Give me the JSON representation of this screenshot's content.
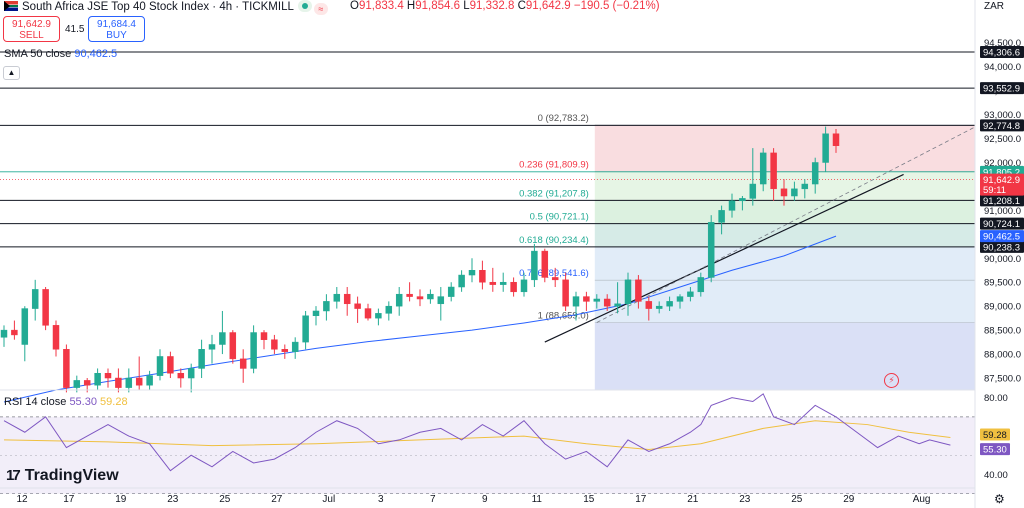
{
  "header": {
    "title": "South Africa JSE Top 40 Stock Index · 4h · TICKMILL",
    "ohlc": {
      "o_label": "O",
      "o": "91,833.4",
      "h_label": "H",
      "h": "91,854.6",
      "l_label": "L",
      "l": "91,332.8",
      "c_label": "C",
      "c": "91,642.9",
      "change": "−190.5 (−0.21%)"
    },
    "sell": {
      "price": "91,642.9",
      "label": "SELL"
    },
    "buy": {
      "price": "91,684.4",
      "label": "BUY"
    },
    "spread": "41.5",
    "currency": "ZAR",
    "wave_glyph": "≈"
  },
  "indicators": {
    "sma": {
      "label": "SMA 50 close",
      "value": "90,462.5"
    },
    "rsi": {
      "label": "RSI 14 close",
      "value": "55.30",
      "ma_value": "59.28"
    }
  },
  "brand": {
    "mark": "17",
    "name": "TradingView"
  },
  "icons": {
    "collapse": "chevron-up-icon",
    "settings": "gear-icon",
    "flash": "flash-icon",
    "flag": "south-africa-flag-icon"
  },
  "colors": {
    "up": "#22ab94",
    "down": "#f23645",
    "sma": "#2962ff",
    "rsi": "#7e57c2",
    "rsi_ma": "#f0c040",
    "fib_0": "#f8d7da",
    "fib_236": "#fde2e2",
    "fib_382": "#e2f3e0",
    "fib_5": "#d6efdb",
    "fib_618": "#cfe8e3",
    "fib_786": "#dce9f7",
    "fib_1": "#e6e6e6",
    "fib_ext": "#d6ddf5"
  },
  "chart_data": {
    "type": "candlestick",
    "price_axis": {
      "ylim": [
        87250,
        95100
      ],
      "ticks": [
        {
          "v": 94500,
          "t": "94,500.0"
        },
        {
          "v": 94000,
          "t": "94,000.0"
        },
        {
          "v": 93500,
          "t": "93,500.0"
        },
        {
          "v": 93000,
          "t": "93,000.0"
        },
        {
          "v": 92500,
          "t": "92,500.0"
        },
        {
          "v": 92000,
          "t": "92,000.0"
        },
        {
          "v": 91500,
          "t": "91,500.0"
        },
        {
          "v": 91000,
          "t": "91,000.0"
        },
        {
          "v": 90500,
          "t": "90,500.0"
        },
        {
          "v": 90000,
          "t": "90,000.0"
        },
        {
          "v": 89500,
          "t": "89,500.0"
        },
        {
          "v": 89000,
          "t": "89,000.0"
        },
        {
          "v": 88500,
          "t": "88,500.0"
        },
        {
          "v": 88000,
          "t": "88,000.0"
        },
        {
          "v": 87500,
          "t": "87,500.0"
        }
      ]
    },
    "rsi_axis": {
      "ylim": [
        34,
        84
      ],
      "ticks": [
        {
          "v": 80,
          "t": "80.00"
        },
        {
          "v": 40,
          "t": "40.00"
        }
      ],
      "band": [
        70,
        30
      ]
    },
    "x_ticks": [
      {
        "i": 0,
        "t": "12"
      },
      {
        "i": 9,
        "t": "17"
      },
      {
        "i": 19,
        "t": "19"
      },
      {
        "i": 29,
        "t": "23"
      },
      {
        "i": 39,
        "t": "25"
      },
      {
        "i": 49,
        "t": "27"
      },
      {
        "i": 59,
        "t": "Jul"
      },
      {
        "i": 69,
        "t": "3"
      },
      {
        "i": 79,
        "t": "7"
      },
      {
        "i": 89,
        "t": "9"
      },
      {
        "i": 99,
        "t": "11"
      },
      {
        "i": 109,
        "t": "15"
      },
      {
        "i": 119,
        "t": "17"
      },
      {
        "i": 129,
        "t": "21"
      },
      {
        "i": 139,
        "t": "23"
      },
      {
        "i": 149,
        "t": "25"
      },
      {
        "i": 159,
        "t": "29"
      },
      {
        "i": 173,
        "t": "Aug"
      }
    ],
    "candles": [
      {
        "i": 0,
        "o": 88350,
        "h": 88600,
        "l": 88150,
        "c": 88500
      },
      {
        "i": 2,
        "o": 88500,
        "h": 88700,
        "l": 88300,
        "c": 88400
      },
      {
        "i": 4,
        "o": 88200,
        "h": 89000,
        "l": 87850,
        "c": 88950
      },
      {
        "i": 6,
        "o": 88950,
        "h": 89550,
        "l": 88700,
        "c": 89350
      },
      {
        "i": 8,
        "o": 89350,
        "h": 89400,
        "l": 88500,
        "c": 88600
      },
      {
        "i": 10,
        "o": 88600,
        "h": 88700,
        "l": 87950,
        "c": 88100
      },
      {
        "i": 12,
        "o": 88100,
        "h": 88200,
        "l": 87200,
        "c": 87300
      },
      {
        "i": 14,
        "o": 87300,
        "h": 87550,
        "l": 87200,
        "c": 87450
      },
      {
        "i": 16,
        "o": 87450,
        "h": 87500,
        "l": 87200,
        "c": 87350
      },
      {
        "i": 18,
        "o": 87350,
        "h": 87700,
        "l": 87250,
        "c": 87600
      },
      {
        "i": 20,
        "o": 87600,
        "h": 87700,
        "l": 87300,
        "c": 87500
      },
      {
        "i": 22,
        "o": 87500,
        "h": 87700,
        "l": 87200,
        "c": 87300
      },
      {
        "i": 24,
        "o": 87300,
        "h": 87700,
        "l": 87200,
        "c": 87500
      },
      {
        "i": 26,
        "o": 87500,
        "h": 87950,
        "l": 87250,
        "c": 87350
      },
      {
        "i": 28,
        "o": 87350,
        "h": 87650,
        "l": 87250,
        "c": 87550
      },
      {
        "i": 30,
        "o": 87550,
        "h": 88100,
        "l": 87450,
        "c": 87950
      },
      {
        "i": 32,
        "o": 87950,
        "h": 88050,
        "l": 87500,
        "c": 87600
      },
      {
        "i": 34,
        "o": 87600,
        "h": 87700,
        "l": 87300,
        "c": 87500
      },
      {
        "i": 36,
        "o": 87500,
        "h": 87800,
        "l": 87200,
        "c": 87700
      },
      {
        "i": 38,
        "o": 87700,
        "h": 88300,
        "l": 87500,
        "c": 88100
      },
      {
        "i": 40,
        "o": 88100,
        "h": 88400,
        "l": 87800,
        "c": 88200
      },
      {
        "i": 42,
        "o": 88200,
        "h": 88900,
        "l": 88000,
        "c": 88450
      },
      {
        "i": 44,
        "o": 88450,
        "h": 88500,
        "l": 87800,
        "c": 87900
      },
      {
        "i": 46,
        "o": 87900,
        "h": 88100,
        "l": 87400,
        "c": 87700
      },
      {
        "i": 48,
        "o": 87700,
        "h": 88600,
        "l": 87600,
        "c": 88450
      },
      {
        "i": 50,
        "o": 88450,
        "h": 88500,
        "l": 88100,
        "c": 88300
      },
      {
        "i": 52,
        "o": 88300,
        "h": 88400,
        "l": 88000,
        "c": 88100
      },
      {
        "i": 54,
        "o": 88100,
        "h": 88200,
        "l": 87900,
        "c": 88050
      },
      {
        "i": 56,
        "o": 88050,
        "h": 88350,
        "l": 87900,
        "c": 88250
      },
      {
        "i": 58,
        "o": 88250,
        "h": 88900,
        "l": 88100,
        "c": 88800
      },
      {
        "i": 60,
        "o": 88800,
        "h": 89000,
        "l": 88600,
        "c": 88900
      },
      {
        "i": 62,
        "o": 88900,
        "h": 89250,
        "l": 88700,
        "c": 89100
      },
      {
        "i": 64,
        "o": 89100,
        "h": 89400,
        "l": 88950,
        "c": 89250
      },
      {
        "i": 66,
        "o": 89250,
        "h": 89400,
        "l": 88800,
        "c": 89050
      },
      {
        "i": 68,
        "o": 89050,
        "h": 89200,
        "l": 88650,
        "c": 88950
      },
      {
        "i": 70,
        "o": 88950,
        "h": 89050,
        "l": 88700,
        "c": 88750
      },
      {
        "i": 72,
        "o": 88750,
        "h": 88950,
        "l": 88600,
        "c": 88850
      },
      {
        "i": 74,
        "o": 88850,
        "h": 89100,
        "l": 88700,
        "c": 89000
      },
      {
        "i": 76,
        "o": 89000,
        "h": 89400,
        "l": 88800,
        "c": 89250
      },
      {
        "i": 78,
        "o": 89250,
        "h": 89500,
        "l": 89100,
        "c": 89200
      },
      {
        "i": 80,
        "o": 89200,
        "h": 89350,
        "l": 89000,
        "c": 89150
      },
      {
        "i": 82,
        "o": 89150,
        "h": 89350,
        "l": 89050,
        "c": 89250
      },
      {
        "i": 84,
        "o": 89050,
        "h": 89400,
        "l": 88700,
        "c": 89200
      },
      {
        "i": 86,
        "o": 89200,
        "h": 89500,
        "l": 89100,
        "c": 89400
      },
      {
        "i": 88,
        "o": 89400,
        "h": 89750,
        "l": 89300,
        "c": 89650
      },
      {
        "i": 90,
        "o": 89650,
        "h": 90000,
        "l": 89500,
        "c": 89750
      },
      {
        "i": 92,
        "o": 89750,
        "h": 89950,
        "l": 89350,
        "c": 89500
      },
      {
        "i": 94,
        "o": 89500,
        "h": 89800,
        "l": 89300,
        "c": 89450
      },
      {
        "i": 96,
        "o": 89450,
        "h": 89700,
        "l": 89300,
        "c": 89500
      },
      {
        "i": 98,
        "o": 89500,
        "h": 89600,
        "l": 89200,
        "c": 89300
      },
      {
        "i": 100,
        "o": 89300,
        "h": 89700,
        "l": 89200,
        "c": 89550
      },
      {
        "i": 102,
        "o": 89550,
        "h": 90300,
        "l": 89400,
        "c": 90150
      },
      {
        "i": 104,
        "o": 90150,
        "h": 90200,
        "l": 89500,
        "c": 89600
      },
      {
        "i": 106,
        "o": 89600,
        "h": 89800,
        "l": 89400,
        "c": 89550
      },
      {
        "i": 108,
        "o": 89550,
        "h": 89700,
        "l": 88900,
        "c": 89000
      },
      {
        "i": 110,
        "o": 89000,
        "h": 89300,
        "l": 88700,
        "c": 89200
      },
      {
        "i": 112,
        "o": 89200,
        "h": 89300,
        "l": 88900,
        "c": 89100
      },
      {
        "i": 114,
        "o": 89100,
        "h": 89250,
        "l": 88950,
        "c": 89150
      },
      {
        "i": 116,
        "o": 89150,
        "h": 89250,
        "l": 88900,
        "c": 89000
      },
      {
        "i": 118,
        "o": 89000,
        "h": 89500,
        "l": 88850,
        "c": 89050
      },
      {
        "i": 120,
        "o": 89050,
        "h": 89700,
        "l": 88800,
        "c": 89550
      },
      {
        "i": 122,
        "o": 89550,
        "h": 89650,
        "l": 88950,
        "c": 89100
      },
      {
        "i": 124,
        "o": 89100,
        "h": 89200,
        "l": 88700,
        "c": 88950
      },
      {
        "i": 126,
        "o": 88950,
        "h": 89100,
        "l": 88850,
        "c": 89000
      },
      {
        "i": 128,
        "o": 89000,
        "h": 89200,
        "l": 88900,
        "c": 89100
      },
      {
        "i": 130,
        "o": 89100,
        "h": 89250,
        "l": 88950,
        "c": 89200
      },
      {
        "i": 132,
        "o": 89200,
        "h": 89400,
        "l": 89100,
        "c": 89300
      },
      {
        "i": 134,
        "o": 89300,
        "h": 89700,
        "l": 89200,
        "c": 89600
      },
      {
        "i": 136,
        "o": 89600,
        "h": 90900,
        "l": 89500,
        "c": 90750
      },
      {
        "i": 138,
        "o": 90750,
        "h": 91100,
        "l": 90500,
        "c": 91000
      },
      {
        "i": 140,
        "o": 91000,
        "h": 91350,
        "l": 90850,
        "c": 91200
      },
      {
        "i": 142,
        "o": 91200,
        "h": 91300,
        "l": 91000,
        "c": 91250
      },
      {
        "i": 144,
        "o": 91250,
        "h": 92300,
        "l": 91100,
        "c": 91550
      },
      {
        "i": 146,
        "o": 91550,
        "h": 92300,
        "l": 91400,
        "c": 92200
      },
      {
        "i": 148,
        "o": 92200,
        "h": 92300,
        "l": 91200,
        "c": 91450
      },
      {
        "i": 150,
        "o": 91450,
        "h": 91650,
        "l": 91100,
        "c": 91300
      },
      {
        "i": 152,
        "o": 91300,
        "h": 91600,
        "l": 91200,
        "c": 91450
      },
      {
        "i": 154,
        "o": 91450,
        "h": 91650,
        "l": 91250,
        "c": 91550
      },
      {
        "i": 156,
        "o": 91550,
        "h": 92100,
        "l": 91350,
        "c": 92000
      },
      {
        "i": 158,
        "o": 92000,
        "h": 92750,
        "l": 91800,
        "c": 92600
      },
      {
        "i": 160,
        "o": 92600,
        "h": 92700,
        "l": 92200,
        "c": 92350
      }
    ],
    "sma_line": [
      {
        "i": 0,
        "v": 87000
      },
      {
        "i": 10,
        "v": 87250
      },
      {
        "i": 20,
        "v": 87430
      },
      {
        "i": 30,
        "v": 87600
      },
      {
        "i": 40,
        "v": 87780
      },
      {
        "i": 50,
        "v": 87950
      },
      {
        "i": 60,
        "v": 88120
      },
      {
        "i": 70,
        "v": 88260
      },
      {
        "i": 80,
        "v": 88380
      },
      {
        "i": 90,
        "v": 88500
      },
      {
        "i": 100,
        "v": 88650
      },
      {
        "i": 110,
        "v": 88820
      },
      {
        "i": 120,
        "v": 89050
      },
      {
        "i": 130,
        "v": 89400
      },
      {
        "i": 140,
        "v": 89750
      },
      {
        "i": 150,
        "v": 90050
      },
      {
        "i": 160,
        "v": 90462.5
      }
    ],
    "fib_levels": [
      {
        "ratio": 0,
        "label": "0 (92,783.2)",
        "v": 92783.2
      },
      {
        "ratio": 0.236,
        "label": "0.236 (91,809.9)",
        "v": 91809.9
      },
      {
        "ratio": 0.382,
        "label": "0.382 (91,207.8)",
        "v": 91207.8
      },
      {
        "ratio": 0.5,
        "label": "0.5 (90,721.1)",
        "v": 90721.1
      },
      {
        "ratio": 0.618,
        "label": "0.618 (90,234.4)",
        "v": 90234.4
      },
      {
        "ratio": 0.786,
        "label": "0.786 (89,541.6)",
        "v": 89541.6
      },
      {
        "ratio": 1,
        "label": "1 (88,659.0)",
        "v": 88659.0
      }
    ],
    "fib_start_i": 114,
    "horizontal_levels": [
      {
        "v": 94306.6,
        "t": "94,306.6"
      },
      {
        "v": 93552.9,
        "t": "93,552.9"
      },
      {
        "v": 92774.8,
        "t": "92,774.8"
      },
      {
        "v": 91208.1,
        "t": "91,208.1"
      },
      {
        "v": 90724.1,
        "t": "90,724.1"
      },
      {
        "v": 90238.3,
        "t": "90,238.3"
      }
    ],
    "price_labels": [
      {
        "v": 91805.2,
        "t": "91,805.2",
        "kind": "fib"
      },
      {
        "v": 91642.9,
        "t": "91,642.9",
        "kind": "last"
      },
      {
        "v": 90462.5,
        "t": "90,462.5",
        "kind": "sma"
      }
    ],
    "countdown": "59:11",
    "trendline": {
      "from": {
        "i": 104,
        "v": 88250
      },
      "to": {
        "i": 173,
        "v": 91750
      }
    },
    "rsi_line": [
      {
        "i": 0,
        "v": 68
      },
      {
        "i": 4,
        "v": 62
      },
      {
        "i": 8,
        "v": 70
      },
      {
        "i": 12,
        "v": 54
      },
      {
        "i": 16,
        "v": 60
      },
      {
        "i": 20,
        "v": 66
      },
      {
        "i": 24,
        "v": 60
      },
      {
        "i": 28,
        "v": 56
      },
      {
        "i": 32,
        "v": 42
      },
      {
        "i": 36,
        "v": 50
      },
      {
        "i": 40,
        "v": 44
      },
      {
        "i": 44,
        "v": 52
      },
      {
        "i": 48,
        "v": 46
      },
      {
        "i": 52,
        "v": 48
      },
      {
        "i": 56,
        "v": 54
      },
      {
        "i": 60,
        "v": 62
      },
      {
        "i": 64,
        "v": 68
      },
      {
        "i": 68,
        "v": 64
      },
      {
        "i": 72,
        "v": 56
      },
      {
        "i": 76,
        "v": 58
      },
      {
        "i": 80,
        "v": 62
      },
      {
        "i": 84,
        "v": 64
      },
      {
        "i": 88,
        "v": 58
      },
      {
        "i": 92,
        "v": 66
      },
      {
        "i": 96,
        "v": 60
      },
      {
        "i": 100,
        "v": 68
      },
      {
        "i": 104,
        "v": 56
      },
      {
        "i": 108,
        "v": 48
      },
      {
        "i": 112,
        "v": 52
      },
      {
        "i": 116,
        "v": 44
      },
      {
        "i": 120,
        "v": 58
      },
      {
        "i": 124,
        "v": 52
      },
      {
        "i": 128,
        "v": 56
      },
      {
        "i": 132,
        "v": 62
      },
      {
        "i": 134,
        "v": 66
      },
      {
        "i": 136,
        "v": 76
      },
      {
        "i": 140,
        "v": 80
      },
      {
        "i": 144,
        "v": 78
      },
      {
        "i": 146,
        "v": 82
      },
      {
        "i": 148,
        "v": 70
      },
      {
        "i": 152,
        "v": 66
      },
      {
        "i": 156,
        "v": 76
      },
      {
        "i": 160,
        "v": 70
      },
      {
        "i": 164,
        "v": 62
      },
      {
        "i": 168,
        "v": 54
      },
      {
        "i": 172,
        "v": 60
      },
      {
        "i": 176,
        "v": 56
      },
      {
        "i": 178,
        "v": 58
      },
      {
        "i": 182,
        "v": 55.3
      }
    ],
    "rsi_ma_line": [
      {
        "i": 0,
        "v": 58
      },
      {
        "i": 20,
        "v": 57
      },
      {
        "i": 40,
        "v": 55
      },
      {
        "i": 60,
        "v": 56
      },
      {
        "i": 80,
        "v": 58
      },
      {
        "i": 100,
        "v": 60
      },
      {
        "i": 112,
        "v": 56
      },
      {
        "i": 124,
        "v": 53
      },
      {
        "i": 134,
        "v": 56
      },
      {
        "i": 146,
        "v": 64
      },
      {
        "i": 156,
        "v": 68
      },
      {
        "i": 166,
        "v": 66
      },
      {
        "i": 174,
        "v": 62
      },
      {
        "i": 182,
        "v": 59.28
      }
    ],
    "rsi_value_labels": [
      {
        "v": 59.28,
        "t": "59.28",
        "kind": "ma"
      },
      {
        "v": 55.3,
        "t": "55.30",
        "kind": "rsi"
      }
    ]
  }
}
